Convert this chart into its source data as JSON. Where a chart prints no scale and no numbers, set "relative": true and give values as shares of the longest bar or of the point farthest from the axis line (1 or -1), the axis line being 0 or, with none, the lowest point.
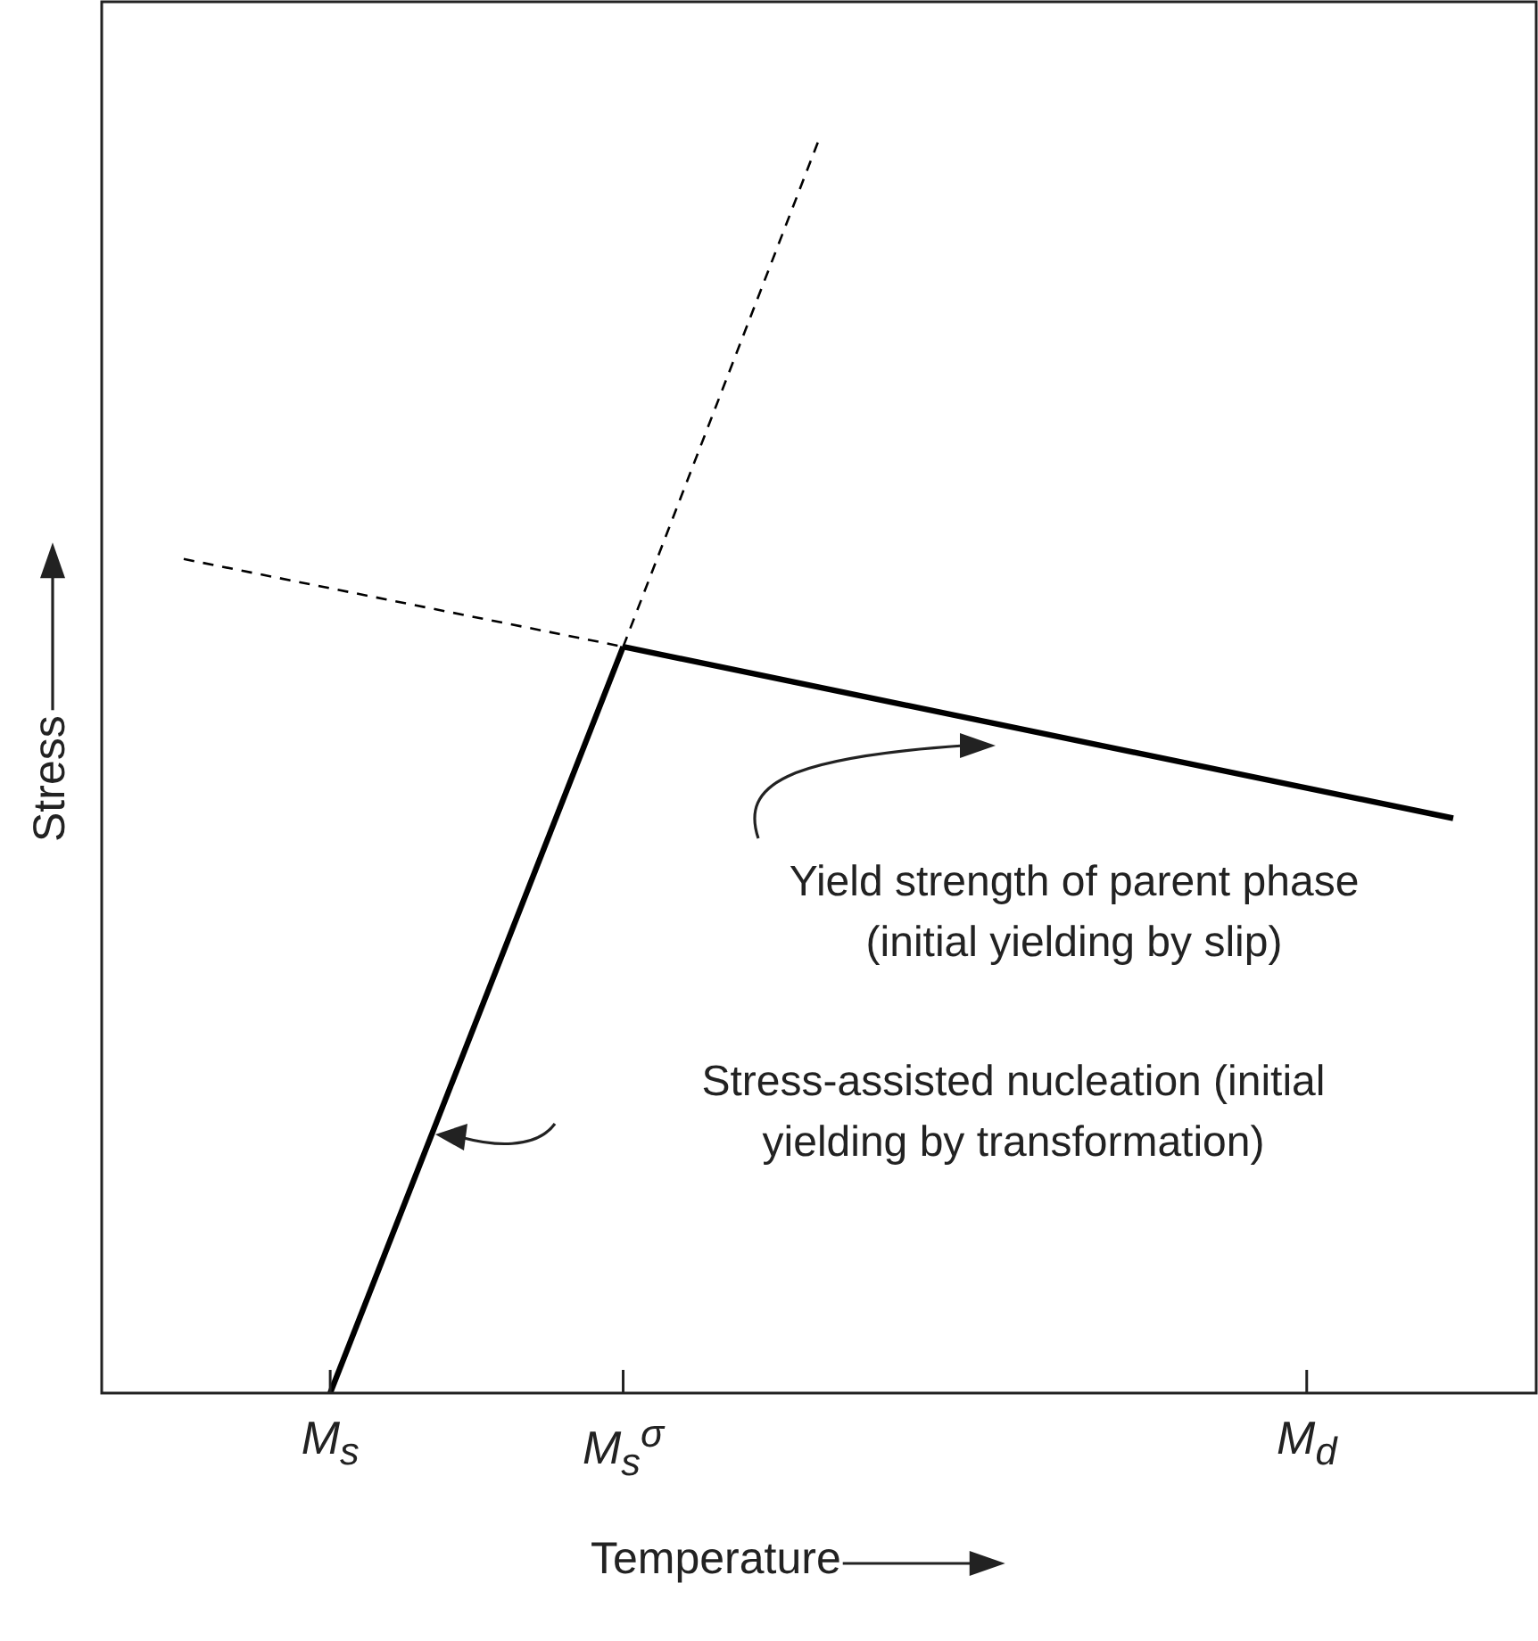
{
  "chart_data": {
    "type": "line",
    "relative": true,
    "xlabel": "Temperature",
    "ylabel": "Stress",
    "categories": [
      null,
      null,
      null,
      "M$_{s}$",
      null,
      null,
      null,
      null,
      null,
      "M$_{s}$$^{σ}$",
      null,
      null,
      null,
      null,
      null,
      null,
      null,
      null,
      null,
      null,
      null,
      null,
      null,
      "M$_{d}$",
      null,
      null,
      null
    ],
    "series": [
      {
        "color": "#000000",
        "values": [
          null,
          null,
          null,
          0,
          null,
          null,
          null,
          null,
          null,
          0.596,
          null,
          null,
          null,
          null,
          null,
          null,
          null,
          null,
          null,
          null,
          null,
          null,
          null,
          null,
          null,
          null,
          null
        ],
        "line_style": "solid"
      },
      {
        "color": "#000000",
        "values": [
          null,
          null,
          null,
          null,
          null,
          null,
          null,
          null,
          null,
          0.596,
          null,
          null,
          null,
          null,
          null,
          null,
          null,
          null,
          null,
          null,
          null,
          null,
          null,
          null,
          null,
          null,
          0.459
        ],
        "line_style": "solid"
      },
      {
        "color": "#000000",
        "values": [
          0.666,
          null,
          null,
          null,
          null,
          null,
          null,
          null,
          null,
          0.596,
          null,
          null,
          null,
          null,
          null,
          null,
          null,
          null,
          null,
          null,
          null,
          null,
          null,
          null,
          null,
          null,
          null
        ],
        "line_style": "dashed"
      },
      {
        "color": "#000000",
        "values": [
          null,
          null,
          null,
          null,
          null,
          null,
          null,
          null,
          null,
          0.596,
          null,
          null,
          null,
          1,
          null,
          null,
          null,
          null,
          null,
          null,
          null,
          null,
          null,
          null,
          null,
          null,
          null
        ],
        "line_style": "dashed"
      }
    ],
    "annotations": [
      "Yield strength of parent phase\n(initial yielding by slip)",
      "Stress-assisted nucleation (initial\nyielding by transformation)"
    ],
    "grid": false,
    "legend": false,
    "marker": "none"
  }
}
